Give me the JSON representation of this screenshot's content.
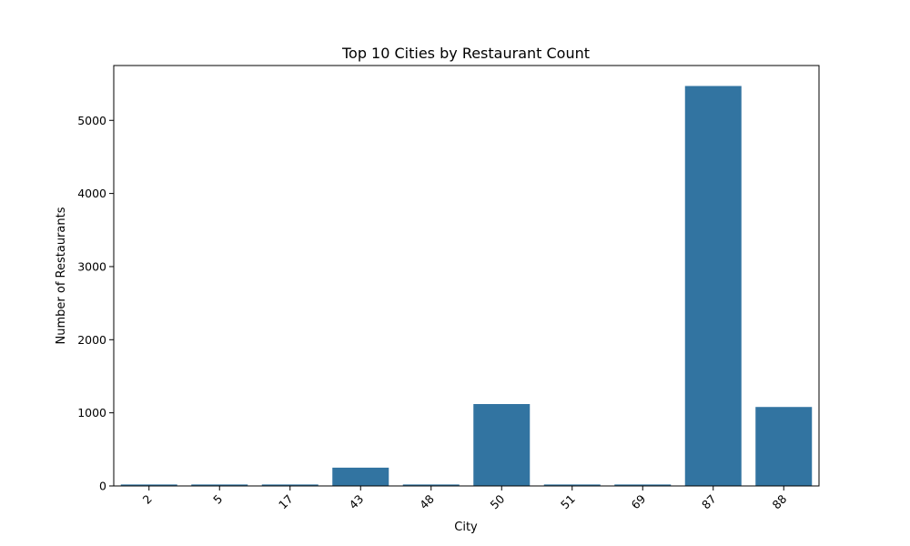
{
  "chart_data": {
    "type": "bar",
    "title": "Top 10 Cities by Restaurant Count",
    "xlabel": "City",
    "ylabel": "Number of Restaurants",
    "categories": [
      "2",
      "5",
      "17",
      "43",
      "48",
      "50",
      "51",
      "69",
      "87",
      "88"
    ],
    "values": [
      20,
      20,
      20,
      250,
      20,
      1120,
      20,
      20,
      5470,
      1080
    ],
    "ylim": [
      0,
      5750
    ],
    "yticks": [
      0,
      1000,
      2000,
      3000,
      4000,
      5000
    ],
    "grid": false,
    "bar_color": "#3274a1"
  }
}
